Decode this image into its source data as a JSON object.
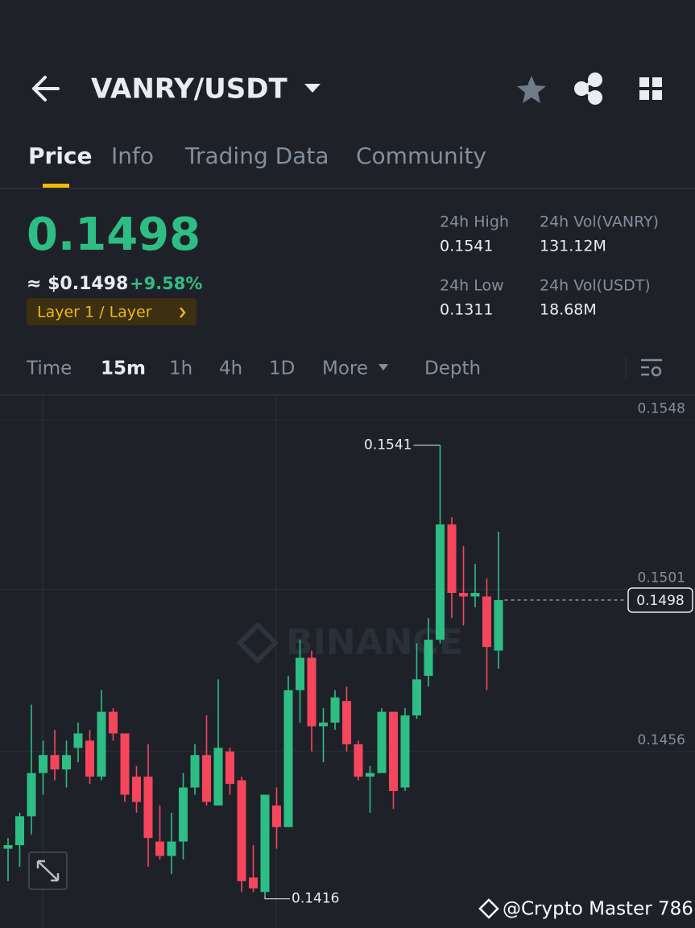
{
  "header": {
    "title": "VANRY/USDT"
  },
  "tabs": [
    "Price",
    "Info",
    "Trading Data",
    "Community"
  ],
  "price": {
    "last": "0.1498",
    "usd": "≈ $0.1498",
    "change": "+9.58%",
    "tag": "Layer 1 / Layer"
  },
  "stats": [
    {
      "label": "24h High",
      "value": "0.1541"
    },
    {
      "label": "24h Vol(VANRY)",
      "value": "131.12M"
    },
    {
      "label": "24h Low",
      "value": "0.1311"
    },
    {
      "label": "24h Vol(USDT)",
      "value": "18.68M"
    }
  ],
  "intervals": [
    "Time",
    "15m",
    "1h",
    "4h",
    "1D",
    "More",
    "Depth"
  ],
  "chart_data": {
    "type": "candlestick",
    "watermark": "BINANCE",
    "up_color": "#2ebd85",
    "down_color": "#f6465d",
    "ylim": [
      0.1407,
      0.1555
    ],
    "yticks": [
      0.1456,
      0.1501,
      0.1548
    ],
    "grid": true,
    "open": [
      0.1429,
      0.143,
      0.1438,
      0.145,
      0.1455,
      0.1451,
      0.1457,
      0.1459,
      0.1449,
      0.1467,
      0.1461,
      0.1449,
      0.1449,
      0.1431,
      0.1427,
      0.1431,
      0.1446,
      0.1455,
      0.1441,
      0.1456,
      0.1448,
      0.1421,
      0.1417,
      0.1441,
      0.1435,
      0.1473,
      0.1482,
      0.1463,
      0.1464,
      0.147,
      0.1458,
      0.1449,
      0.145,
      0.1467,
      0.1446,
      0.1466,
      0.1477,
      0.1487,
      0.1519,
      0.15,
      0.1499,
      0.1499,
      0.1484
    ],
    "high": [
      0.1432,
      0.1439,
      0.1469,
      0.1459,
      0.1462,
      0.1459,
      0.1464,
      0.1462,
      0.1473,
      0.1468,
      0.1461,
      0.1452,
      0.1458,
      0.1441,
      0.1439,
      0.145,
      0.1458,
      0.1466,
      0.1476,
      0.1457,
      0.1449,
      0.143,
      0.1444,
      0.1446,
      0.1477,
      0.1487,
      0.1484,
      0.1468,
      0.1473,
      0.1474,
      0.1459,
      0.1452,
      0.1468,
      0.1467,
      0.1468,
      0.1486,
      0.1493,
      0.1541,
      0.1521,
      0.1513,
      0.1508,
      0.1504,
      0.1517
    ],
    "low": [
      0.142,
      0.1424,
      0.1433,
      0.1444,
      0.1448,
      0.1446,
      0.1453,
      0.1447,
      0.1448,
      0.1459,
      0.1442,
      0.1439,
      0.1424,
      0.1426,
      0.1422,
      0.1426,
      0.1444,
      0.1441,
      0.1441,
      0.1444,
      0.1417,
      0.1417,
      0.1416,
      0.1429,
      0.1435,
      0.1464,
      0.1456,
      0.1453,
      0.1462,
      0.1456,
      0.1448,
      0.1439,
      0.145,
      0.144,
      0.1445,
      0.1465,
      0.1474,
      0.1486,
      0.1493,
      0.1491,
      0.1496,
      0.1473,
      0.1479
    ],
    "close": [
      0.143,
      0.1438,
      0.145,
      0.1455,
      0.1451,
      0.1455,
      0.1461,
      0.1449,
      0.1467,
      0.1461,
      0.1444,
      0.1442,
      0.1432,
      0.1427,
      0.1431,
      0.1446,
      0.1455,
      0.1442,
      0.1457,
      0.1447,
      0.142,
      0.1418,
      0.1444,
      0.1435,
      0.1473,
      0.1482,
      0.1463,
      0.1464,
      0.1471,
      0.1458,
      0.1449,
      0.145,
      0.1467,
      0.1445,
      0.1466,
      0.1476,
      0.1487,
      0.1519,
      0.15,
      0.1499,
      0.15,
      0.1485,
      0.1498
    ],
    "high_label": "0.1541",
    "low_label": "0.1416",
    "last_label": "0.1498"
  },
  "watermark": "@Crypto Master 786"
}
